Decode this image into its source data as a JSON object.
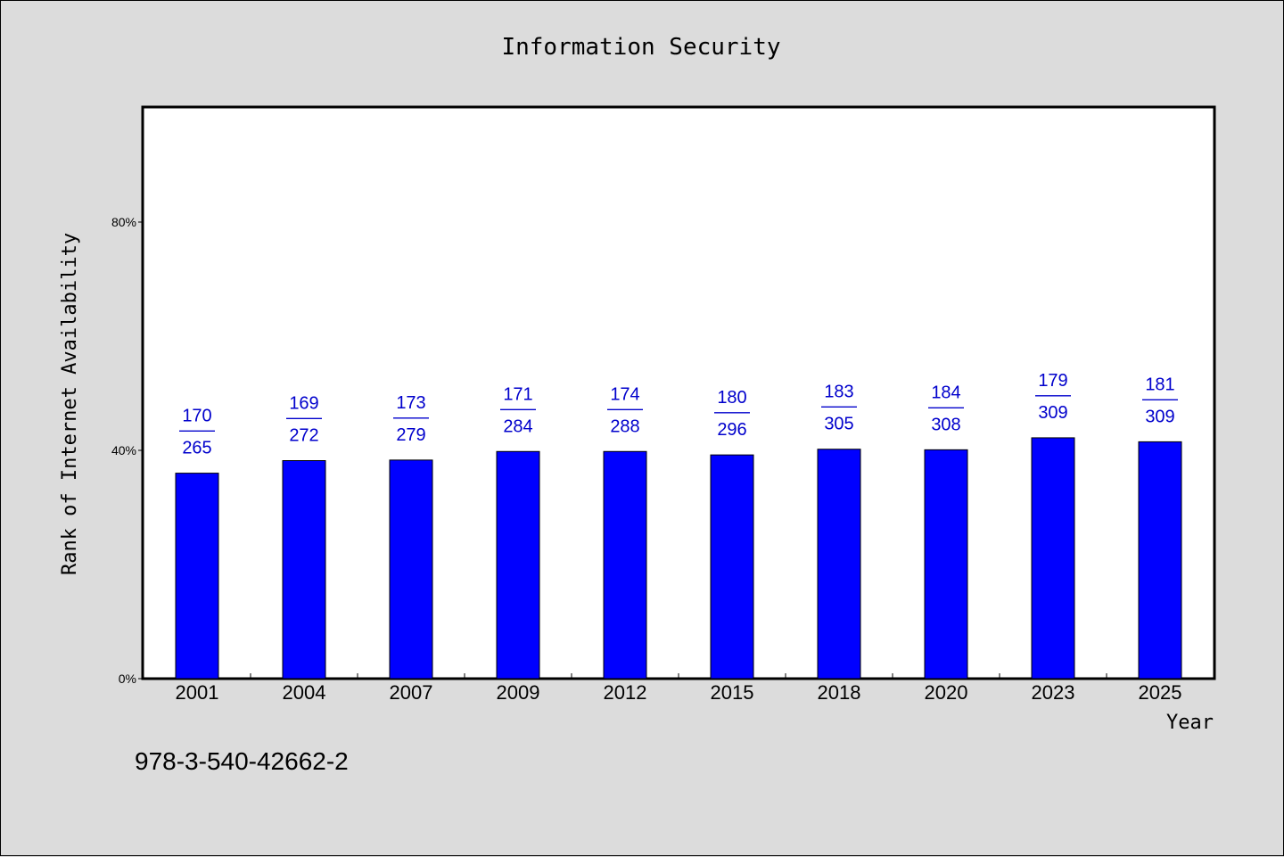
{
  "chart_data": {
    "type": "bar",
    "title": "Information Security",
    "xlabel": "Year",
    "ylabel": "Rank of Internet Availability",
    "categories": [
      "2001",
      "2004",
      "2007",
      "2009",
      "2012",
      "2015",
      "2018",
      "2020",
      "2023",
      "2025"
    ],
    "values": [
      36,
      38.2,
      38.3,
      39.8,
      39.8,
      39.2,
      40.2,
      40.1,
      42.2,
      41.5
    ],
    "ylim": [
      0,
      100
    ],
    "yticks": [
      0,
      40,
      80
    ],
    "ytick_labels": [
      "0%",
      "40%",
      "80%"
    ],
    "data_labels": [
      {
        "top": "170",
        "mid": "——",
        "bottom": "265"
      },
      {
        "top": "169",
        "mid": "——",
        "bottom": "272"
      },
      {
        "top": "173",
        "mid": "——",
        "bottom": "279"
      },
      {
        "top": "171",
        "mid": "——",
        "bottom": "284"
      },
      {
        "top": "174",
        "mid": "——",
        "bottom": "288"
      },
      {
        "top": "180",
        "mid": "——",
        "bottom": "296"
      },
      {
        "top": "183",
        "mid": "——",
        "bottom": "305"
      },
      {
        "top": "184",
        "mid": "——",
        "bottom": "308"
      },
      {
        "top": "179",
        "mid": "——",
        "bottom": "309"
      },
      {
        "top": "181",
        "mid": "——",
        "bottom": "309"
      }
    ],
    "grid": false,
    "bar_color": "#0000ff",
    "label_color": "#0000cc"
  },
  "footnote": "978-3-540-42662-2"
}
